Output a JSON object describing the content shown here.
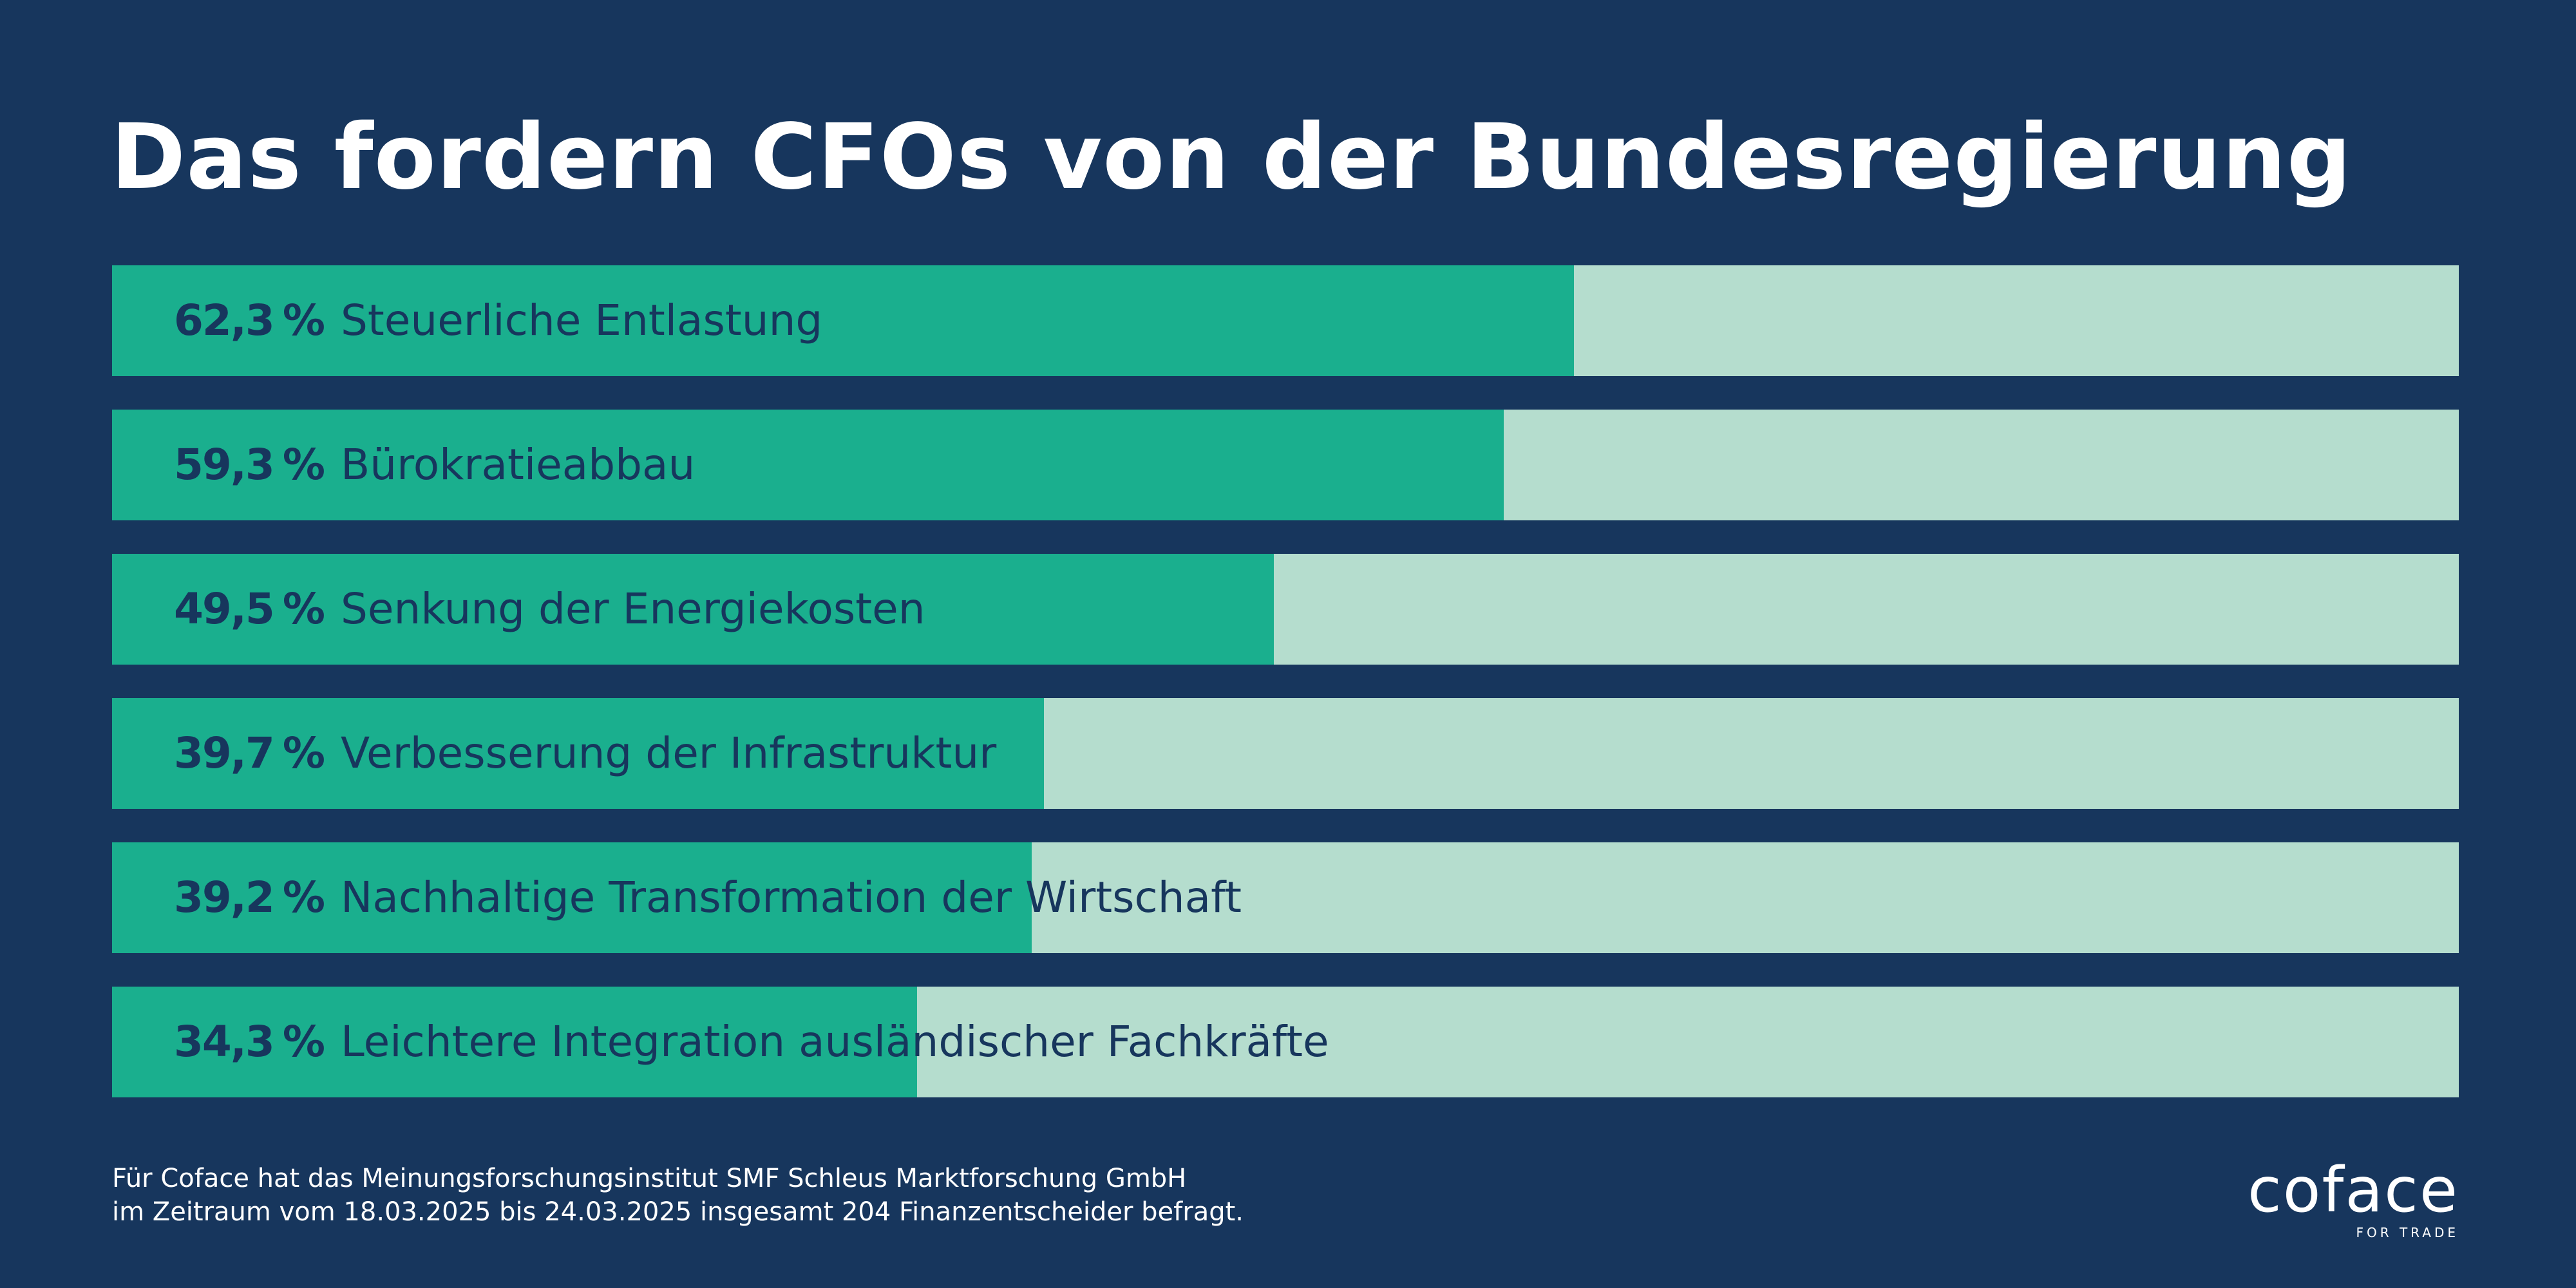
{
  "title": "Das fordern CFOs von der Bundesregierung",
  "chart_data": {
    "type": "bar",
    "orientation": "horizontal",
    "categories": [
      "Steuerliche Entlastung",
      "Bürokratieabbau",
      "Senkung der Energiekosten",
      "Verbesserung der Infrastruktur",
      "Nachhaltige Transformation der Wirtschaft",
      "Leichtere Integration ausländischer Fachkräfte"
    ],
    "values": [
      62.3,
      59.3,
      49.5,
      39.7,
      39.2,
      34.3
    ],
    "value_labels": [
      "62,3",
      "59,3",
      "49,5",
      "39,7",
      "39,2",
      "34,3"
    ],
    "unit": "%",
    "xlim": [
      0,
      100
    ],
    "grid": false,
    "legend": false,
    "colors": {
      "fill": "#1aaf8e",
      "track": "#b5ddce",
      "label": "#17365d"
    }
  },
  "footnote": {
    "line1": "Für Coface hat das Meinungsforschungsinstitut SMF Schleus Marktforschung GmbH",
    "line2": "im Zeitraum vom 18.03.2025 bis 24.03.2025 insgesamt 204 Finanzentscheider befragt."
  },
  "logo": {
    "word": "coface",
    "tagline": "FOR TRADE"
  },
  "colors": {
    "background": "#17365d",
    "text": "#ffffff"
  }
}
